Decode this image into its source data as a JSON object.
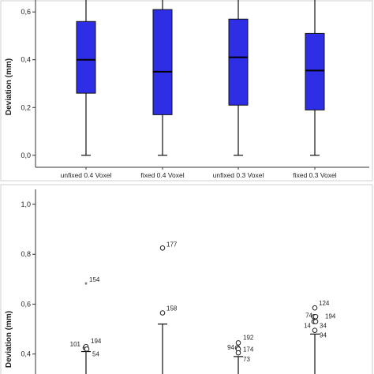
{
  "chart_data": [
    {
      "type": "box",
      "ylabel": "Deviation (mm)",
      "ylim": [
        -0.05,
        0.65
      ],
      "yticks": [
        0.0,
        0.2,
        0.4,
        0.6
      ],
      "ytick_labels": [
        "0,0",
        "0,2",
        "0,4",
        "0,6"
      ],
      "categories": [
        "unfixed 0.4 Voxel",
        "fixed 0.4 Voxel",
        "unfixed 0.3 Voxel",
        "fixed 0.3 Voxel"
      ],
      "boxes": [
        {
          "min": 0.0,
          "q1": 0.26,
          "median": 0.4,
          "q3": 0.56,
          "max": 0.66
        },
        {
          "min": 0.0,
          "q1": 0.17,
          "median": 0.35,
          "q3": 0.61,
          "max": 0.66
        },
        {
          "min": 0.0,
          "q1": 0.21,
          "median": 0.41,
          "q3": 0.57,
          "max": 0.66
        },
        {
          "min": 0.0,
          "q1": 0.19,
          "median": 0.355,
          "q3": 0.51,
          "max": 0.66
        }
      ],
      "box_color": "#2e2ee6"
    },
    {
      "type": "box",
      "ylabel": "Deviation (mm)",
      "ylim": [
        0.32,
        1.06
      ],
      "yticks": [
        0.4,
        0.6,
        0.8,
        1.0
      ],
      "ytick_labels": [
        "0,4",
        "0,6",
        "0,8",
        "1,0"
      ],
      "whisker_tops": [
        0.41,
        0.52,
        0.39,
        0.48
      ],
      "outliers": [
        {
          "cat": 0,
          "value": 0.68,
          "label": "154",
          "marker": "star"
        },
        {
          "cat": 0,
          "value": 0.425,
          "label": "101",
          "marker": "circle"
        },
        {
          "cat": 0,
          "value": 0.43,
          "label": "194",
          "marker": "circle"
        },
        {
          "cat": 0,
          "value": 0.42,
          "label": "54",
          "marker": "circle"
        },
        {
          "cat": 1,
          "value": 0.825,
          "label": "177",
          "marker": "circle"
        },
        {
          "cat": 1,
          "value": 0.565,
          "label": "158",
          "marker": "circle"
        },
        {
          "cat": 2,
          "value": 0.445,
          "label": "192",
          "marker": "circle"
        },
        {
          "cat": 2,
          "value": 0.425,
          "label": "94",
          "marker": "circle"
        },
        {
          "cat": 2,
          "value": 0.42,
          "label": "174",
          "marker": "circle"
        },
        {
          "cat": 2,
          "value": 0.405,
          "label": "73",
          "marker": "circle"
        },
        {
          "cat": 3,
          "value": 0.585,
          "label": "124",
          "marker": "circle"
        },
        {
          "cat": 3,
          "value": 0.55,
          "label": "74",
          "marker": "circle"
        },
        {
          "cat": 3,
          "value": 0.55,
          "label": "194",
          "marker": "circle"
        },
        {
          "cat": 3,
          "value": 0.53,
          "label": "14",
          "marker": "circle"
        },
        {
          "cat": 3,
          "value": 0.53,
          "label": "34",
          "marker": "circle"
        },
        {
          "cat": 3,
          "value": 0.495,
          "label": "94",
          "marker": "circle"
        }
      ]
    }
  ]
}
